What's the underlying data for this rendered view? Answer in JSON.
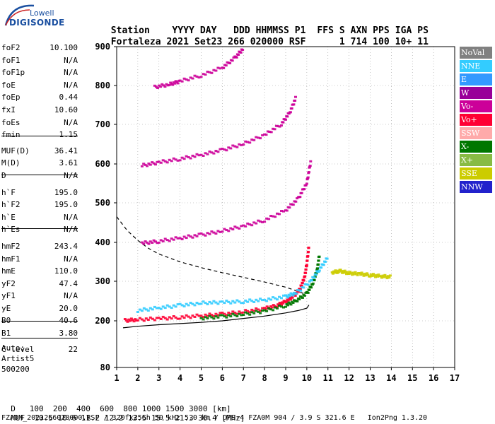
{
  "logo": {
    "brand_top": "Lowell",
    "brand_bottom": "DIGISONDE"
  },
  "header": {
    "labels": [
      "Station",
      "YYYY",
      "DAY",
      "DDD",
      "HHMMSS",
      "P1",
      "FFS",
      "S",
      "AXN",
      "PPS",
      "IGA",
      "PS"
    ],
    "values": [
      "Fortaleza",
      "2021",
      "Set23",
      "266",
      "020000",
      "RSF",
      "",
      "1",
      "714",
      "100",
      "10+",
      "11"
    ]
  },
  "params": [
    {
      "label": "foF2",
      "value": "10.100"
    },
    {
      "label": "foF1",
      "value": "N/A"
    },
    {
      "label": "foF1p",
      "value": "N/A"
    },
    {
      "label": "foE",
      "value": "N/A"
    },
    {
      "label": "foEp",
      "value": "0.44"
    },
    {
      "label": "fxI",
      "value": "10.60"
    },
    {
      "label": "foEs",
      "value": "N/A"
    },
    {
      "label": "fmin",
      "value": "1.15"
    },
    {
      "label": "MUF(D)",
      "value": "36.41"
    },
    {
      "label": "M(D)",
      "value": "3.61"
    },
    {
      "label": "D",
      "value": "N/A"
    },
    {
      "label": "h`F",
      "value": "195.0"
    },
    {
      "label": "h`F2",
      "value": "195.0"
    },
    {
      "label": "h`E",
      "value": "N/A"
    },
    {
      "label": "h`Es",
      "value": "N/A"
    },
    {
      "label": "hmF2",
      "value": "243.4"
    },
    {
      "label": "hmF1",
      "value": "N/A"
    },
    {
      "label": "hmE",
      "value": "110.0"
    },
    {
      "label": "yF2",
      "value": "47.4"
    },
    {
      "label": "yF1",
      "value": "N/A"
    },
    {
      "label": "yE",
      "value": "20.0"
    },
    {
      "label": "B0",
      "value": "40.6"
    },
    {
      "label": "B1",
      "value": "3.80"
    },
    {
      "label": "C-level",
      "value": "22"
    }
  ],
  "auto": {
    "line1": "Auto:",
    "line2": "Artist5",
    "line3": "500200"
  },
  "legend": [
    {
      "label": "NoVal",
      "color": "#808080"
    },
    {
      "label": "NNE",
      "color": "#33ccff"
    },
    {
      "label": "E",
      "color": "#3399ff"
    },
    {
      "label": "W",
      "color": "#990099"
    },
    {
      "label": "Vo-",
      "color": "#cc0099"
    },
    {
      "label": "Vo+",
      "color": "#ff0033"
    },
    {
      "label": "SSW",
      "color": "#ffaaaa"
    },
    {
      "label": "X-",
      "color": "#007700"
    },
    {
      "label": "X+",
      "color": "#88bb44"
    },
    {
      "label": "SSE",
      "color": "#cccc00"
    },
    {
      "label": "NNW",
      "color": "#2222cc"
    }
  ],
  "footer": {
    "d_label": "D",
    "d_values": [
      "100",
      "200",
      "400",
      "600",
      "800",
      "1000",
      "1500",
      "3000",
      "[km]"
    ],
    "muf_label": "MUF",
    "muf_values": [
      "10.5",
      "10.6",
      "11.2",
      "12.2",
      "13.5",
      "15.5",
      "21.3",
      "36.4",
      "[MHz]"
    ],
    "info_line": "FZA0M_2021266020000.RSF / 320fx256h 50 kHz 5.0 km / DPS-4 FZA0M 904 / 3.9 S 321.6 E   Ion2Png 1.3.20"
  },
  "chart_data": {
    "type": "scatter",
    "x_ticks": [
      "1",
      "2",
      "3",
      "4",
      "5",
      "6",
      "7",
      "8",
      "9",
      "10",
      "11",
      "12",
      "13",
      "14",
      "15",
      "16",
      "17"
    ],
    "y_ticks": [
      "80",
      "200",
      "300",
      "400",
      "500",
      "600",
      "700",
      "800",
      "900"
    ],
    "xlim": [
      1,
      17
    ],
    "ylim": [
      80,
      900
    ],
    "grid": "dotted",
    "traces": [
      {
        "name": "F2 O-trace",
        "color": "#ff0033",
        "x": [
          1.4,
          2.0,
          3.0,
          4.0,
          5.0,
          6.0,
          7.0,
          8.0,
          8.6,
          9.0,
          9.4,
          9.7,
          9.9,
          10.0,
          10.1
        ],
        "y": [
          200,
          202,
          205,
          208,
          212,
          216,
          222,
          230,
          238,
          248,
          262,
          282,
          310,
          345,
          390
        ]
      },
      {
        "name": "F2 X-trace",
        "color": "#007700",
        "x": [
          5.0,
          6.0,
          7.0,
          8.0,
          9.0,
          9.5,
          10.0,
          10.3,
          10.5,
          10.6
        ],
        "y": [
          206,
          210,
          216,
          224,
          238,
          250,
          268,
          295,
          330,
          370
        ]
      },
      {
        "name": "spread F",
        "color": "#33ccff",
        "x": [
          2.0,
          3.0,
          4.0,
          5.0,
          6.0,
          7.0,
          8.0,
          9.0,
          9.5,
          10.2,
          10.6,
          11.0
        ],
        "y": [
          225,
          232,
          238,
          244,
          246,
          248,
          252,
          260,
          270,
          300,
          330,
          360
        ]
      },
      {
        "name": "multi-hop 2",
        "color": "#cc0099",
        "x": [
          2.2,
          3.0,
          4.0,
          5.0,
          6.0,
          7.0,
          8.0,
          9.0,
          9.6,
          10.0,
          10.2
        ],
        "y": [
          397,
          402,
          410,
          418,
          428,
          440,
          455,
          480,
          510,
          550,
          610
        ]
      },
      {
        "name": "multi-hop 3",
        "color": "#cc0099",
        "x": [
          2.2,
          3.0,
          4.0,
          5.0,
          6.0,
          7.0,
          8.0,
          8.8,
          9.2,
          9.5
        ],
        "y": [
          595,
          603,
          612,
          622,
          634,
          650,
          672,
          700,
          730,
          770
        ]
      },
      {
        "name": "multi-hop 4",
        "color": "#cc0099",
        "x": [
          2.8,
          3.5,
          4.0,
          5.0,
          6.0,
          6.6,
          7.0
        ],
        "y": [
          795,
          802,
          810,
          825,
          845,
          870,
          895
        ]
      },
      {
        "name": "oblique cluster",
        "color": "#cccc00",
        "x": [
          11.2,
          11.6,
          12.0,
          12.5,
          13.0,
          13.5,
          14.0
        ],
        "y": [
          322,
          325,
          320,
          318,
          315,
          312,
          310
        ]
      }
    ],
    "curves": [
      {
        "name": "profile solid",
        "style": "solid",
        "x": [
          1.3,
          2.0,
          3.0,
          4.0,
          5.0,
          6.0,
          7.0,
          8.0,
          9.0,
          9.6,
          10.0,
          10.1
        ],
        "y": [
          182,
          186,
          190,
          193,
          196,
          200,
          206,
          212,
          220,
          226,
          232,
          240
        ]
      },
      {
        "name": "profile dashed",
        "style": "dashed",
        "x": [
          1.0,
          1.5,
          2.0,
          2.5,
          3.0,
          4.0,
          5.0,
          6.0,
          7.0,
          8.0,
          9.0,
          9.5,
          9.9
        ],
        "y": [
          465,
          430,
          405,
          385,
          370,
          350,
          335,
          322,
          310,
          298,
          285,
          276,
          268
        ]
      }
    ]
  }
}
